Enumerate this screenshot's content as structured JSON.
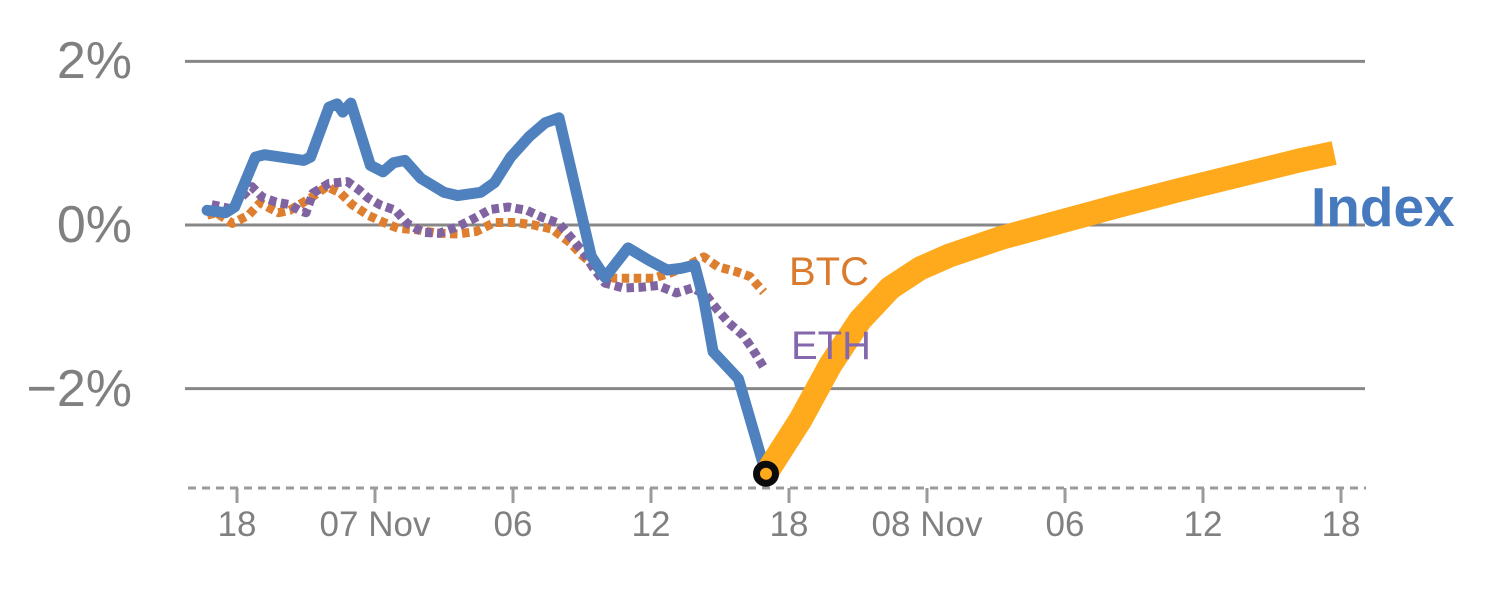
{
  "chart_data": {
    "type": "line",
    "title": "",
    "description": "Intraday percent performance of a crypto Index versus BTC and ETH, with a thick forward projection of the Index starting from the current point marker",
    "colors": {
      "index_line": "#4E81BD",
      "btc_line": "#DE7E2F",
      "eth_line": "#8064A2",
      "forecast_line": "#FFA91C",
      "grid_line": "#878787",
      "axis_line": "#9B9B9B",
      "axis_text": "#808080",
      "marker_ring": "#0B0B0B"
    },
    "y_axis": {
      "tick_labels": [
        "2%",
        "0%",
        "−2%"
      ],
      "tick_values": [
        2,
        0,
        -2
      ],
      "unit": "percent",
      "grid": true
    },
    "x_axis": {
      "tick_labels": [
        "18",
        "07 Nov",
        "06",
        "12",
        "18",
        "08 Nov",
        "06",
        "12",
        "18"
      ],
      "tick_hours": [
        0,
        6,
        12,
        18,
        24,
        30,
        36,
        42,
        48
      ],
      "unit": "hours; t=0 at the first '18' tick (6-hour tick spacing)",
      "style": "dashed baseline with tick marks"
    },
    "series_labels": {
      "btc": "BTC",
      "eth": "ETH",
      "index": "Index"
    },
    "series": [
      {
        "name": "BTC",
        "data_name": "btc-line",
        "style": "dotted",
        "stroke_width": 9,
        "color": "#DE7E2F",
        "points": [
          [
            -1.3,
            0.12
          ],
          [
            -0.9,
            0.15
          ],
          [
            -0.2,
            0.02
          ],
          [
            0.5,
            0.12
          ],
          [
            1.0,
            0.27
          ],
          [
            1.8,
            0.15
          ],
          [
            2.3,
            0.18
          ],
          [
            3.2,
            0.33
          ],
          [
            3.9,
            0.47
          ],
          [
            4.5,
            0.39
          ],
          [
            5.0,
            0.25
          ],
          [
            5.7,
            0.12
          ],
          [
            6.3,
            0.04
          ],
          [
            7.0,
            -0.04
          ],
          [
            7.9,
            -0.06
          ],
          [
            8.7,
            -0.1
          ],
          [
            9.6,
            -0.11
          ],
          [
            10.4,
            -0.08
          ],
          [
            11.2,
            0.03
          ],
          [
            12.1,
            0.03
          ],
          [
            12.9,
            0.0
          ],
          [
            13.7,
            -0.05
          ],
          [
            14.5,
            -0.22
          ],
          [
            15.0,
            -0.37
          ],
          [
            15.8,
            -0.55
          ],
          [
            16.4,
            -0.65
          ],
          [
            17.3,
            -0.65
          ],
          [
            18.1,
            -0.65
          ],
          [
            18.8,
            -0.59
          ],
          [
            19.5,
            -0.51
          ],
          [
            20.3,
            -0.39
          ],
          [
            20.9,
            -0.51
          ],
          [
            21.7,
            -0.57
          ],
          [
            22.3,
            -0.63
          ],
          [
            22.9,
            -0.82
          ]
        ]
      },
      {
        "name": "ETH",
        "data_name": "eth-line",
        "style": "dotted",
        "stroke_width": 9,
        "color": "#8064A2",
        "points": [
          [
            -1.1,
            0.25
          ],
          [
            -0.3,
            0.2
          ],
          [
            0.2,
            0.34
          ],
          [
            0.65,
            0.47
          ],
          [
            1.1,
            0.34
          ],
          [
            1.7,
            0.28
          ],
          [
            2.3,
            0.25
          ],
          [
            2.7,
            0.18
          ],
          [
            3.0,
            0.15
          ],
          [
            3.3,
            0.39
          ],
          [
            4.0,
            0.51
          ],
          [
            4.8,
            0.53
          ],
          [
            5.3,
            0.43
          ],
          [
            5.7,
            0.33
          ],
          [
            6.2,
            0.25
          ],
          [
            6.9,
            0.18
          ],
          [
            7.4,
            0.02
          ],
          [
            8.1,
            -0.09
          ],
          [
            8.8,
            -0.1
          ],
          [
            9.6,
            -0.02
          ],
          [
            10.3,
            0.08
          ],
          [
            11.0,
            0.19
          ],
          [
            11.8,
            0.22
          ],
          [
            12.6,
            0.18
          ],
          [
            13.3,
            0.09
          ],
          [
            14.0,
            0.02
          ],
          [
            14.6,
            -0.18
          ],
          [
            15.1,
            -0.35
          ],
          [
            15.5,
            -0.53
          ],
          [
            16.0,
            -0.71
          ],
          [
            16.8,
            -0.77
          ],
          [
            17.6,
            -0.76
          ],
          [
            18.3,
            -0.74
          ],
          [
            19.1,
            -0.83
          ],
          [
            19.8,
            -0.77
          ],
          [
            20.4,
            -0.86
          ],
          [
            20.9,
            -1.04
          ],
          [
            21.4,
            -1.2
          ],
          [
            22.0,
            -1.35
          ],
          [
            22.4,
            -1.51
          ],
          [
            22.9,
            -1.74
          ]
        ]
      },
      {
        "name": "Index",
        "data_name": "index-line",
        "style": "solid",
        "stroke_width": 11,
        "color": "#4E81BD",
        "points": [
          [
            -1.3,
            0.18
          ],
          [
            -0.5,
            0.15
          ],
          [
            -0.1,
            0.22
          ],
          [
            0.8,
            0.83
          ],
          [
            1.2,
            0.86
          ],
          [
            2.9,
            0.79
          ],
          [
            3.2,
            0.83
          ],
          [
            4.0,
            1.44
          ],
          [
            4.35,
            1.48
          ],
          [
            4.6,
            1.38
          ],
          [
            4.95,
            1.49
          ],
          [
            5.8,
            0.73
          ],
          [
            6.35,
            0.65
          ],
          [
            6.8,
            0.76
          ],
          [
            7.3,
            0.79
          ],
          [
            8.0,
            0.57
          ],
          [
            9.0,
            0.4
          ],
          [
            9.6,
            0.36
          ],
          [
            10.6,
            0.4
          ],
          [
            11.2,
            0.52
          ],
          [
            11.9,
            0.83
          ],
          [
            12.7,
            1.08
          ],
          [
            13.4,
            1.25
          ],
          [
            14.0,
            1.31
          ],
          [
            15.4,
            -0.38
          ],
          [
            16.0,
            -0.64
          ],
          [
            17.0,
            -0.28
          ],
          [
            17.9,
            -0.43
          ],
          [
            18.7,
            -0.55
          ],
          [
            19.3,
            -0.53
          ],
          [
            19.9,
            -0.49
          ],
          [
            20.3,
            -0.92
          ],
          [
            20.7,
            -1.55
          ],
          [
            21.8,
            -1.88
          ],
          [
            23.0,
            -3.04
          ]
        ]
      },
      {
        "name": "Index forecast",
        "data_name": "index-forecast-line",
        "style": "solid",
        "stroke_width": 24,
        "color": "#FFA91C",
        "points": [
          [
            23.0,
            -3.04
          ],
          [
            24.5,
            -2.38
          ],
          [
            25.8,
            -1.71
          ],
          [
            27.1,
            -1.16
          ],
          [
            28.4,
            -0.77
          ],
          [
            29.7,
            -0.53
          ],
          [
            31.0,
            -0.37
          ],
          [
            33.2,
            -0.16
          ],
          [
            35.8,
            0.04
          ],
          [
            38.4,
            0.24
          ],
          [
            41.0,
            0.43
          ],
          [
            43.6,
            0.61
          ],
          [
            46.2,
            0.79
          ],
          [
            47.7,
            0.88
          ]
        ]
      }
    ],
    "marker": {
      "name": "current point (forecast start)",
      "t": 23.0,
      "value_pct": -3.04,
      "shape": "ring",
      "ring_color": "#0B0B0B",
      "fill": "#FFA91C"
    },
    "ylim_pct": [
      -3.2,
      2.0
    ],
    "legend_position": "labels placed inline next to series"
  }
}
